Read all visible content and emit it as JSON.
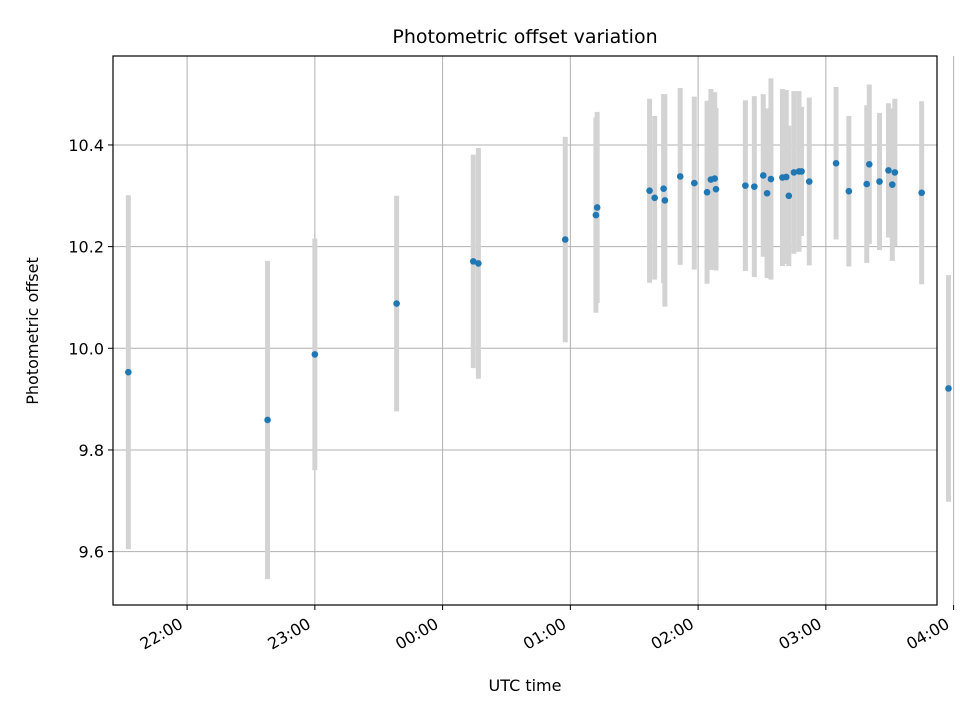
{
  "chart_data": {
    "type": "scatter",
    "title": "Photometric offset variation",
    "xlabel": "UTC time",
    "ylabel": "Photometric offset",
    "x_unit": "hours since 00:00 UTC",
    "xlim": [
      -2.58,
      3.87
    ],
    "ylim": [
      9.495,
      10.575
    ],
    "x_ticks": [
      {
        "value": -2,
        "label": "22:00"
      },
      {
        "value": -1,
        "label": "23:00"
      },
      {
        "value": 0,
        "label": "00:00"
      },
      {
        "value": 1,
        "label": "01:00"
      },
      {
        "value": 2,
        "label": "02:00"
      },
      {
        "value": 3,
        "label": "03:00"
      },
      {
        "value": 4,
        "label": "04:00"
      }
    ],
    "y_ticks": [
      {
        "value": 9.6,
        "label": "9.6"
      },
      {
        "value": 9.8,
        "label": "9.8"
      },
      {
        "value": 10.0,
        "label": "10.0"
      },
      {
        "value": 10.2,
        "label": "10.2"
      },
      {
        "value": 10.4,
        "label": "10.4"
      }
    ],
    "grid": true,
    "marker_color": "#1f77b4",
    "errorbar_color": "#d3d3d3",
    "points": [
      {
        "x": -2.46,
        "y": 9.953,
        "err": 0.348
      },
      {
        "x": -1.37,
        "y": 9.859,
        "err": 0.313
      },
      {
        "x": -1.0,
        "y": 9.988,
        "err": 0.228
      },
      {
        "x": -0.36,
        "y": 10.088,
        "err": 0.212
      },
      {
        "x": 0.24,
        "y": 10.171,
        "err": 0.21
      },
      {
        "x": 0.28,
        "y": 10.167,
        "err": 0.227
      },
      {
        "x": 0.96,
        "y": 10.214,
        "err": 0.202
      },
      {
        "x": 1.2,
        "y": 10.262,
        "err": 0.192
      },
      {
        "x": 1.21,
        "y": 10.277,
        "err": 0.188
      },
      {
        "x": 1.62,
        "y": 10.31,
        "err": 0.181
      },
      {
        "x": 1.66,
        "y": 10.296,
        "err": 0.161
      },
      {
        "x": 1.73,
        "y": 10.314,
        "err": 0.186
      },
      {
        "x": 1.74,
        "y": 10.291,
        "err": 0.209
      },
      {
        "x": 1.86,
        "y": 10.338,
        "err": 0.174
      },
      {
        "x": 1.97,
        "y": 10.325,
        "err": 0.17
      },
      {
        "x": 2.07,
        "y": 10.307,
        "err": 0.18
      },
      {
        "x": 2.1,
        "y": 10.332,
        "err": 0.178
      },
      {
        "x": 2.13,
        "y": 10.334,
        "err": 0.17
      },
      {
        "x": 2.14,
        "y": 10.313,
        "err": 0.16
      },
      {
        "x": 2.37,
        "y": 10.32,
        "err": 0.168
      },
      {
        "x": 2.44,
        "y": 10.318,
        "err": 0.178
      },
      {
        "x": 2.51,
        "y": 10.34,
        "err": 0.16
      },
      {
        "x": 2.54,
        "y": 10.305,
        "err": 0.167
      },
      {
        "x": 2.57,
        "y": 10.333,
        "err": 0.198
      },
      {
        "x": 2.66,
        "y": 10.336,
        "err": 0.174
      },
      {
        "x": 2.69,
        "y": 10.337,
        "err": 0.171
      },
      {
        "x": 2.71,
        "y": 10.3,
        "err": 0.138
      },
      {
        "x": 2.75,
        "y": 10.346,
        "err": 0.16
      },
      {
        "x": 2.79,
        "y": 10.348,
        "err": 0.158
      },
      {
        "x": 2.81,
        "y": 10.348,
        "err": 0.127
      },
      {
        "x": 2.87,
        "y": 10.328,
        "err": 0.165
      },
      {
        "x": 3.08,
        "y": 10.364,
        "err": 0.15
      },
      {
        "x": 3.18,
        "y": 10.309,
        "err": 0.148
      },
      {
        "x": 3.32,
        "y": 10.323,
        "err": 0.155
      },
      {
        "x": 3.34,
        "y": 10.362,
        "err": 0.157
      },
      {
        "x": 3.42,
        "y": 10.328,
        "err": 0.135
      },
      {
        "x": 3.49,
        "y": 10.35,
        "err": 0.132
      },
      {
        "x": 3.52,
        "y": 10.322,
        "err": 0.15
      },
      {
        "x": 3.54,
        "y": 10.346,
        "err": 0.145
      },
      {
        "x": 3.75,
        "y": 10.306,
        "err": 0.18
      },
      {
        "x": 3.96,
        "y": 9.921,
        "err": 0.223
      }
    ]
  }
}
